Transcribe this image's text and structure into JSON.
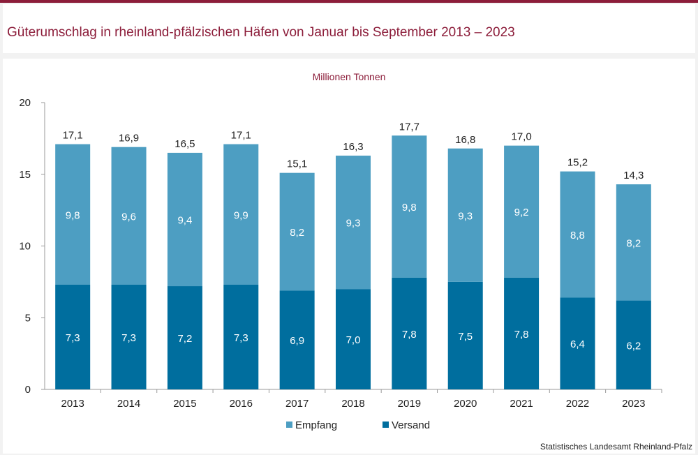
{
  "header": {
    "title": "Güterumschlag in rheinland-pfälzischen Häfen von Januar bis September 2013 – 2023"
  },
  "chart_data": {
    "type": "bar",
    "stacked": true,
    "unit_label": "Millionen Tonnen",
    "categories": [
      "2013",
      "2014",
      "2015",
      "2016",
      "2017",
      "2018",
      "2019",
      "2020",
      "2021",
      "2022",
      "2023"
    ],
    "series": [
      {
        "name": "Versand",
        "color": "#006e9e",
        "values": [
          7.3,
          7.3,
          7.2,
          7.3,
          6.9,
          7.0,
          7.8,
          7.5,
          7.8,
          6.4,
          6.2
        ],
        "labels": [
          "7,3",
          "7,3",
          "7,2",
          "7,3",
          "6,9",
          "7,0",
          "7,8",
          "7,5",
          "7,8",
          "6,4",
          "6,2"
        ]
      },
      {
        "name": "Empfang",
        "color": "#4d9ec2",
        "values": [
          9.8,
          9.6,
          9.4,
          9.9,
          8.2,
          9.3,
          9.8,
          9.3,
          9.2,
          8.8,
          8.2
        ],
        "labels": [
          "9,8",
          "9,6",
          "9,4",
          "9,9",
          "8,2",
          "9,3",
          "9,8",
          "9,3",
          "9,2",
          "8,8",
          "8,2"
        ]
      }
    ],
    "totals": [
      17.1,
      16.9,
      16.5,
      17.1,
      15.1,
      16.3,
      17.7,
      16.8,
      17.0,
      15.2,
      14.3
    ],
    "total_labels": [
      "17,1",
      "16,9",
      "16,5",
      "17,1",
      "15,1",
      "16,3",
      "17,7",
      "16,8",
      "17,0",
      "15,2",
      "14,3"
    ],
    "ylim": [
      0,
      20
    ],
    "yticks": [
      "0",
      "5",
      "10",
      "15",
      "20"
    ],
    "legend": [
      "Empfang",
      "Versand"
    ],
    "legend_position": "bottom",
    "grid": false
  },
  "footer": {
    "source": "Statistisches Landesamt Rheinland-Pfalz"
  }
}
